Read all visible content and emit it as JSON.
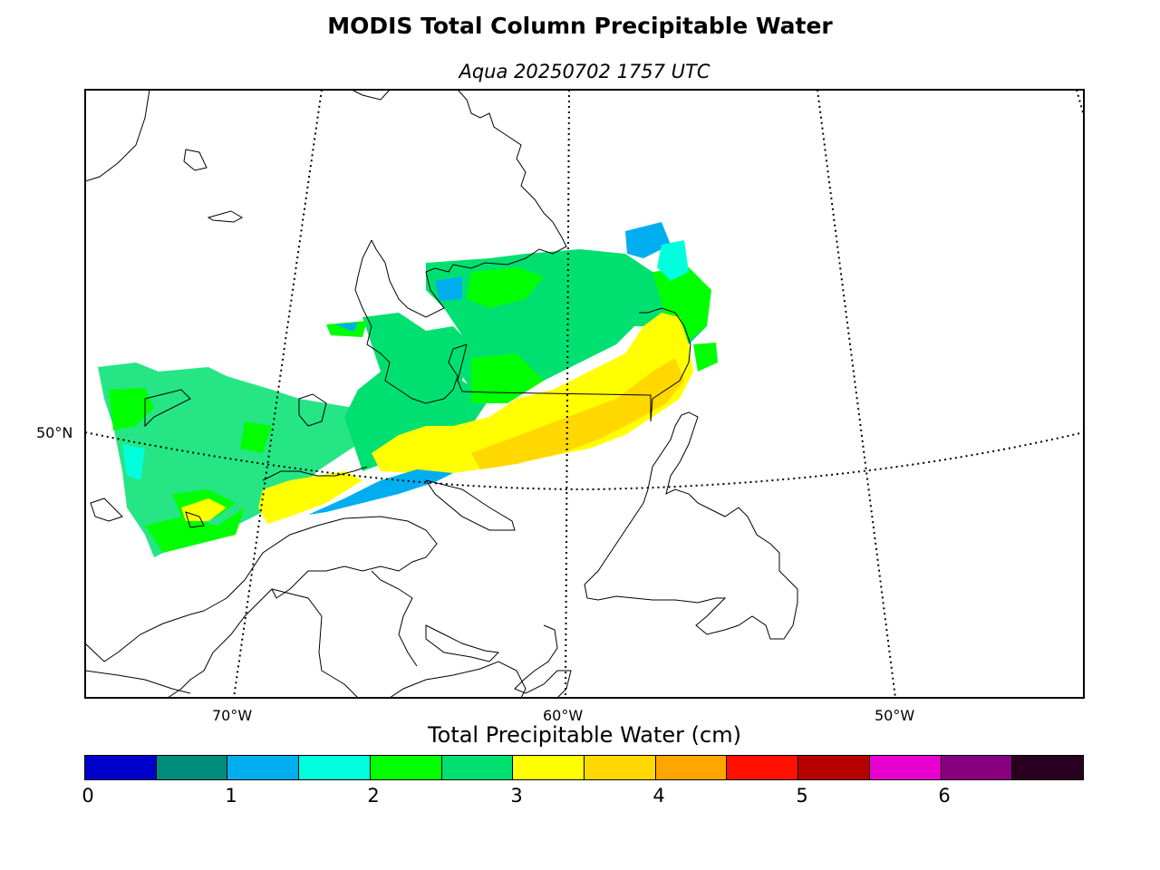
{
  "title": "MODIS Total Column Precipitable Water",
  "subtitle": "Aqua 20250702 1757 UTC",
  "map": {
    "lat_labels": [
      "50°N"
    ],
    "lon_labels": [
      "70°W",
      "60°W",
      "50°W"
    ]
  },
  "colorbar": {
    "label": "Total Precipitable Water (cm)",
    "ticks": [
      "0",
      "1",
      "2",
      "3",
      "4",
      "5",
      "6"
    ],
    "colors": [
      "#0000cc",
      "#008c7a",
      "#00aef0",
      "#00ffdc",
      "#00ff00",
      "#00e070",
      "#ffff00",
      "#ffd800",
      "#ffa500",
      "#ff1000",
      "#b80000",
      "#e800d0",
      "#880080",
      "#2a0020"
    ]
  }
}
